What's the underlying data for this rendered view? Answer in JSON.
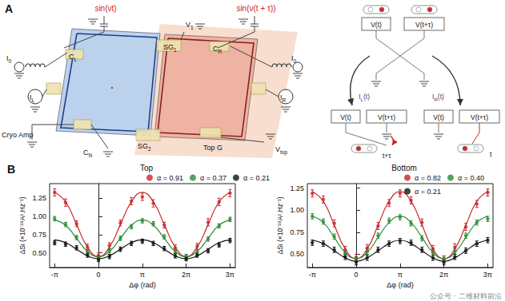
{
  "diagram": {
    "panel_label": "A",
    "sources": [
      "sin(νt)",
      "sin(ν(t + τ))"
    ],
    "labels": [
      {
        "text": "C",
        "sub": "L"
      },
      {
        "text": "SG",
        "sub": "1"
      },
      {
        "text": "C",
        "sub": "R"
      },
      {
        "text": "V",
        "sub": "1"
      },
      {
        "text": "I",
        "sub": "0"
      },
      {
        "text": "I",
        "sub": "0"
      },
      {
        "text": "I",
        "sub": "L"
      },
      {
        "text": "I",
        "sub": "R"
      },
      {
        "text": "Cryo Amp"
      },
      {
        "text": "C",
        "sub": "N"
      },
      {
        "text": "SG",
        "sub": "2"
      },
      {
        "text": "Top G"
      },
      {
        "text": "V",
        "sub": "top"
      }
    ],
    "voltage_labels": [
      "V(t)",
      "V(t+τ)"
    ],
    "currents": [
      {
        "text": "I",
        "sub": "L",
        "suffix": "(t)"
      },
      {
        "text": "I",
        "sub": "R",
        "suffix": "(t)"
      }
    ],
    "delays": [
      "t+τ",
      "t"
    ]
  },
  "panel_b_label": "B",
  "watermark": "公众号 · 二维材料前沿",
  "chart_data": [
    {
      "type": "scatter",
      "title": "Top",
      "xlabel": "Δφ (rad)",
      "ylabel": {
        "text": "ΔS",
        "sub": "I",
        "suffix": " (×10⁻²⁸A².Hz⁻¹)"
      },
      "x": [
        -3.1416,
        -2.3562,
        -1.5708,
        -0.7854,
        0,
        0.7854,
        1.5708,
        2.3562,
        3.1416,
        3.927,
        4.7124,
        5.4978,
        6.2832,
        7.0686,
        7.854,
        8.6394,
        9.4248
      ],
      "xlim": [
        -3.5,
        9.8
      ],
      "xticks": [
        {
          "value": -3.1416,
          "label": "-π"
        },
        0,
        {
          "value": 3.1416,
          "label": "π"
        },
        {
          "value": 6.2832,
          "label": "2π"
        },
        {
          "value": 9.4248,
          "label": "3π"
        }
      ],
      "ylim": [
        0.3,
        1.45
      ],
      "yticks": [
        {
          "value": 0.5,
          "label": "0.50"
        },
        0.75,
        {
          "value": 1,
          "label": "1.00"
        },
        1.25
      ],
      "grid": false,
      "series": [
        {
          "name": "α = 0.91",
          "color": "#c8262b",
          "values": [
            1.33,
            1.19,
            0.9,
            0.58,
            0.46,
            0.6,
            0.91,
            1.21,
            1.27,
            1.18,
            0.88,
            0.57,
            0.44,
            0.59,
            0.92,
            1.2,
            1.32
          ],
          "errors": [
            0.05,
            0.05,
            0.04,
            0.04,
            0.04,
            0.04,
            0.04,
            0.05,
            0.05,
            0.05,
            0.04,
            0.04,
            0.04,
            0.04,
            0.05,
            0.05,
            0.05
          ],
          "fit": [
            1.33,
            1.2,
            0.89,
            0.58,
            0.45,
            0.58,
            0.89,
            1.2,
            1.33,
            1.2,
            0.89,
            0.58,
            0.45,
            0.58,
            0.89,
            1.2,
            1.33
          ]
        },
        {
          "name": "α = 0.37",
          "color": "#2e8b3a",
          "values": [
            0.97,
            0.89,
            0.71,
            0.52,
            0.44,
            0.53,
            0.7,
            0.86,
            0.94,
            0.9,
            0.72,
            0.53,
            0.45,
            0.51,
            0.69,
            0.87,
            0.96
          ],
          "errors": [
            0.03,
            0.03,
            0.03,
            0.03,
            0.03,
            0.03,
            0.03,
            0.03,
            0.03,
            0.03,
            0.03,
            0.03,
            0.03,
            0.03,
            0.03,
            0.03,
            0.03
          ],
          "fit": [
            0.95,
            0.88,
            0.7,
            0.52,
            0.45,
            0.52,
            0.7,
            0.88,
            0.95,
            0.88,
            0.7,
            0.52,
            0.45,
            0.52,
            0.7,
            0.88,
            0.95
          ]
        },
        {
          "name": "α = 0.21",
          "color": "#111111",
          "values": [
            0.64,
            0.62,
            0.57,
            0.47,
            0.41,
            0.45,
            0.55,
            0.63,
            0.66,
            0.63,
            0.56,
            0.46,
            0.42,
            0.47,
            0.53,
            0.61,
            0.67
          ],
          "errors": [
            0.03,
            0.03,
            0.03,
            0.03,
            0.03,
            0.03,
            0.03,
            0.03,
            0.03,
            0.03,
            0.03,
            0.03,
            0.03,
            0.03,
            0.03,
            0.03,
            0.03
          ],
          "fit": [
            0.68,
            0.64,
            0.55,
            0.46,
            0.42,
            0.46,
            0.55,
            0.64,
            0.68,
            0.64,
            0.55,
            0.46,
            0.42,
            0.46,
            0.55,
            0.64,
            0.68
          ]
        }
      ]
    },
    {
      "type": "scatter",
      "title": "Bottom",
      "xlabel": "Δφ (rad)",
      "ylabel": {
        "text": "ΔS",
        "sub": "I",
        "suffix": " (×10⁻²⁸A².Hz⁻¹)"
      },
      "x": [
        -3.1416,
        -2.3562,
        -1.5708,
        -0.7854,
        0,
        0.7854,
        1.5708,
        2.3562,
        3.1416,
        3.927,
        4.7124,
        5.4978,
        6.2832,
        7.0686,
        7.854,
        8.6394,
        9.4248
      ],
      "xlim": [
        -3.5,
        9.8
      ],
      "xticks": [
        {
          "value": -3.1416,
          "label": "-π"
        },
        0,
        {
          "value": 3.1416,
          "label": "π"
        },
        {
          "value": 6.2832,
          "label": "2π"
        },
        {
          "value": 9.4248,
          "label": "3π"
        }
      ],
      "ylim": [
        0.35,
        1.3
      ],
      "yticks": [
        {
          "value": 0.5,
          "label": "0.50"
        },
        0.75,
        {
          "value": 1,
          "label": "1.00"
        },
        1.25
      ],
      "grid": false,
      "series": [
        {
          "name": "α = 0.82",
          "color": "#c8262b",
          "values": [
            1.19,
            1.12,
            0.85,
            0.55,
            0.46,
            0.57,
            0.82,
            1.08,
            1.19,
            1.11,
            0.86,
            0.56,
            0.44,
            0.58,
            0.81,
            1.07,
            1.2
          ],
          "errors": [
            0.04,
            0.04,
            0.04,
            0.04,
            0.04,
            0.04,
            0.04,
            0.04,
            0.04,
            0.04,
            0.04,
            0.04,
            0.04,
            0.04,
            0.04,
            0.04,
            0.04
          ],
          "fit": [
            1.21,
            1.1,
            0.83,
            0.56,
            0.45,
            0.56,
            0.83,
            1.1,
            1.21,
            1.1,
            0.83,
            0.56,
            0.45,
            0.56,
            0.83,
            1.1,
            1.21
          ]
        },
        {
          "name": "α = 0.40",
          "color": "#2e8b3a",
          "values": [
            0.93,
            0.87,
            0.7,
            0.51,
            0.44,
            0.53,
            0.71,
            0.88,
            0.92,
            0.85,
            0.68,
            0.52,
            0.45,
            0.53,
            0.71,
            0.86,
            0.9
          ],
          "errors": [
            0.03,
            0.03,
            0.03,
            0.03,
            0.03,
            0.03,
            0.03,
            0.03,
            0.03,
            0.03,
            0.03,
            0.03,
            0.03,
            0.03,
            0.03,
            0.03,
            0.03
          ],
          "fit": [
            0.93,
            0.86,
            0.69,
            0.52,
            0.45,
            0.52,
            0.69,
            0.86,
            0.93,
            0.86,
            0.69,
            0.52,
            0.45,
            0.52,
            0.69,
            0.86,
            0.93
          ]
        },
        {
          "name": "α = 0.21",
          "color": "#111111",
          "values": [
            0.63,
            0.62,
            0.55,
            0.47,
            0.41,
            0.46,
            0.55,
            0.62,
            0.65,
            0.63,
            0.55,
            0.46,
            0.41,
            0.47,
            0.54,
            0.62,
            0.66
          ],
          "errors": [
            0.03,
            0.03,
            0.03,
            0.03,
            0.03,
            0.03,
            0.03,
            0.03,
            0.03,
            0.03,
            0.03,
            0.03,
            0.03,
            0.03,
            0.03,
            0.03,
            0.03
          ],
          "fit": [
            0.66,
            0.62,
            0.54,
            0.46,
            0.42,
            0.46,
            0.54,
            0.62,
            0.66,
            0.62,
            0.54,
            0.46,
            0.42,
            0.46,
            0.54,
            0.62,
            0.66
          ]
        }
      ]
    }
  ]
}
